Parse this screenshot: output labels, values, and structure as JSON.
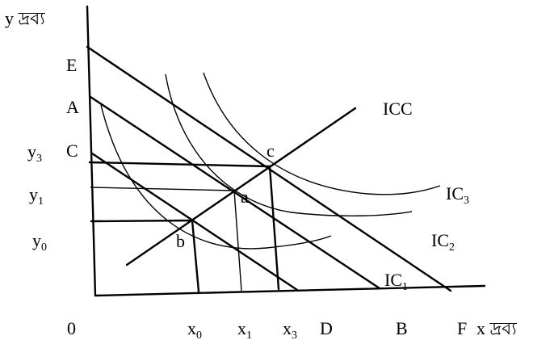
{
  "diagram": {
    "y_axis_label": "y দ্রব্য",
    "x_axis_label": "x দ্রব্য",
    "origin": "0",
    "y_intercepts": {
      "E": "E",
      "A": "A",
      "C": "C"
    },
    "x_intercepts": {
      "D": "D",
      "B": "B",
      "F": "F"
    },
    "y_levels": [
      {
        "base": "y",
        "sub": "3"
      },
      {
        "base": "y",
        "sub": "1"
      },
      {
        "base": "y",
        "sub": "0"
      }
    ],
    "x_levels": [
      {
        "base": "x",
        "sub": "0"
      },
      {
        "base": "x",
        "sub": "1"
      },
      {
        "base": "x",
        "sub": "3"
      }
    ],
    "points": {
      "a": "a",
      "b": "b",
      "c": "c"
    },
    "curve_labels": {
      "icc": "ICC",
      "ic1": {
        "base": "IC",
        "sub": "1"
      },
      "ic2": {
        "base": "IC",
        "sub": "2"
      },
      "ic3": {
        "base": "IC",
        "sub": "3"
      }
    }
  }
}
